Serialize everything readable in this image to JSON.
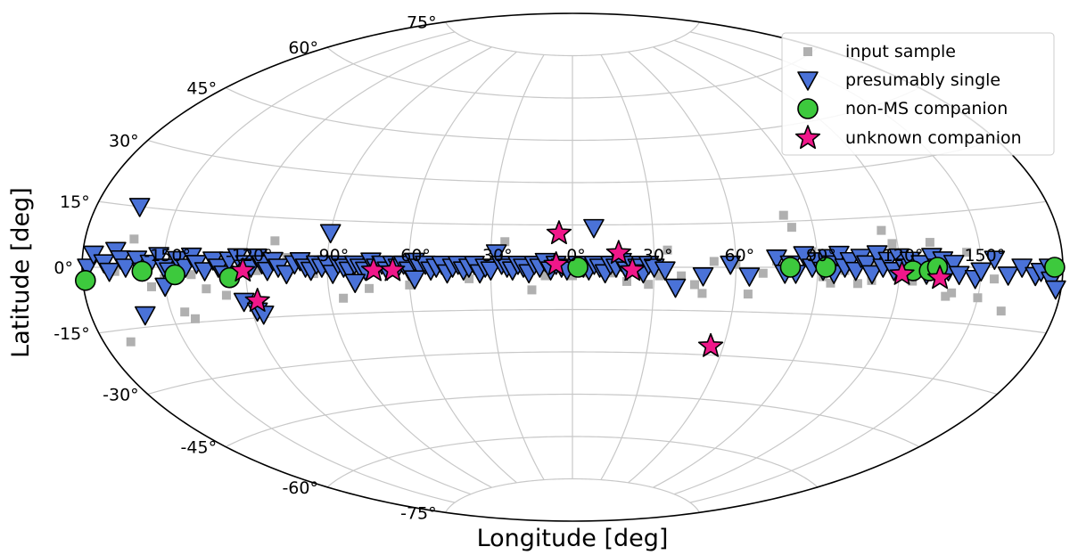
{
  "chart_data": {
    "type": "scatter",
    "projection": "aitoff",
    "title": "",
    "xlabel": "Longitude [deg]",
    "ylabel": "Latitude [deg]",
    "xlim": [
      -180,
      180
    ],
    "ylim": [
      -90,
      90
    ],
    "grid": true,
    "x_ticks": [
      -150,
      -120,
      -90,
      -60,
      -30,
      0,
      30,
      60,
      90,
      120,
      150
    ],
    "x_tick_labels": [
      "-150°",
      "-120°",
      "-90°",
      "-60°",
      "-30°",
      "0°",
      "30°",
      "60°",
      "90°",
      "120°",
      "150°"
    ],
    "y_ticks": [
      -75,
      -60,
      -45,
      -30,
      -15,
      0,
      15,
      30,
      45,
      60,
      75
    ],
    "y_tick_labels": [
      "-75°",
      "-60°",
      "-45°",
      "-30°",
      "-15°",
      "0°",
      "15°",
      "30°",
      "45°",
      "60°",
      "75°"
    ],
    "legend_position": "top-right",
    "legend": [
      "input sample",
      "presumably single",
      "non-MS companion",
      "unknown companion"
    ],
    "colors": {
      "input_sample": "#b0b0b0",
      "presumably_single": "#4a72d8",
      "non_ms_companion": "#3dc93d",
      "unknown_companion": "#f0178a",
      "outline": "#000000",
      "grid": "#c8c8c8"
    },
    "series": [
      {
        "name": "input sample",
        "marker": "square",
        "points": [
          [
            -175,
            2
          ],
          [
            -168,
            -1
          ],
          [
            -162,
            7
          ],
          [
            -155,
            -5
          ],
          [
            -150,
            -3
          ],
          [
            -145,
            -12
          ],
          [
            -142,
            -14
          ],
          [
            -140,
            -2
          ],
          [
            -135,
            -6
          ],
          [
            -130,
            2
          ],
          [
            -128,
            -8
          ],
          [
            -125,
            -4
          ],
          [
            -116,
            -1
          ],
          [
            -110,
            8
          ],
          [
            -105,
            3
          ],
          [
            -95,
            -2
          ],
          [
            -85,
            -10
          ],
          [
            -75,
            -7
          ],
          [
            -60,
            -6
          ],
          [
            -48,
            0
          ],
          [
            -40,
            -1
          ],
          [
            -38,
            -4
          ],
          [
            -25,
            9
          ],
          [
            -15,
            -8
          ],
          [
            -10,
            -3
          ],
          [
            0,
            -3
          ],
          [
            5,
            -2
          ],
          [
            15,
            -2
          ],
          [
            20,
            -5
          ],
          [
            28,
            -6
          ],
          [
            32,
            -3
          ],
          [
            35,
            6
          ],
          [
            40,
            -3
          ],
          [
            45,
            -6
          ],
          [
            48,
            -9
          ],
          [
            52,
            2
          ],
          [
            60,
            1
          ],
          [
            65,
            -9
          ],
          [
            70,
            -2
          ],
          [
            75,
            2
          ],
          [
            78,
            -1
          ],
          [
            80,
            17
          ],
          [
            82,
            13
          ],
          [
            88,
            5
          ],
          [
            92,
            -3
          ],
          [
            95,
            -5
          ],
          [
            100,
            -1
          ],
          [
            105,
            -5
          ],
          [
            108,
            1
          ],
          [
            110,
            -4
          ],
          [
            112,
            2
          ],
          [
            115,
            11
          ],
          [
            118,
            7
          ],
          [
            120,
            4
          ],
          [
            122,
            -2
          ],
          [
            125,
            -4
          ],
          [
            128,
            1
          ],
          [
            132,
            7
          ],
          [
            135,
            -3
          ],
          [
            138,
            -8
          ],
          [
            140,
            -7
          ],
          [
            145,
            4
          ],
          [
            150,
            -8
          ],
          [
            155,
            -3
          ],
          [
            160,
            -11
          ],
          [
            165,
            1
          ],
          [
            -170,
            -18
          ]
        ]
      },
      {
        "name": "presumably single",
        "marker": "triangle-down",
        "points": [
          [
            -178,
            0
          ],
          [
            -176,
            3
          ],
          [
            -172,
            1
          ],
          [
            -170,
            -1
          ],
          [
            -168,
            4
          ],
          [
            -166,
            2
          ],
          [
            -164,
            0
          ],
          [
            -160,
            2
          ],
          [
            -158,
            -1
          ],
          [
            -155,
            1
          ],
          [
            -152,
            3
          ],
          [
            -150,
            0
          ],
          [
            -148,
            -1
          ],
          [
            -145,
            2
          ],
          [
            -142,
            0
          ],
          [
            -140,
            3
          ],
          [
            -138,
            1
          ],
          [
            -135,
            -1
          ],
          [
            -132,
            2
          ],
          [
            -130,
            0
          ],
          [
            -128,
            -2
          ],
          [
            -126,
            2
          ],
          [
            -123,
            3
          ],
          [
            -120,
            1
          ],
          [
            -118,
            0
          ],
          [
            -116,
            3
          ],
          [
            -114,
            1
          ],
          [
            -112,
            -1
          ],
          [
            -110,
            2
          ],
          [
            -108,
            0
          ],
          [
            -105,
            -2
          ],
          [
            -102,
            1
          ],
          [
            -100,
            2
          ],
          [
            -98,
            0
          ],
          [
            -96,
            -1
          ],
          [
            -94,
            1
          ],
          [
            -92,
            0
          ],
          [
            -90,
            1
          ],
          [
            -88,
            -2
          ],
          [
            -86,
            1
          ],
          [
            -84,
            0
          ],
          [
            -82,
            -1
          ],
          [
            -80,
            1
          ],
          [
            -78,
            0
          ],
          [
            -76,
            -1
          ],
          [
            -74,
            2
          ],
          [
            -72,
            0
          ],
          [
            -70,
            1
          ],
          [
            -68,
            -1
          ],
          [
            -66,
            1
          ],
          [
            -64,
            0
          ],
          [
            -62,
            1
          ],
          [
            -60,
            -1
          ],
          [
            -58,
            2
          ],
          [
            -56,
            0
          ],
          [
            -54,
            1
          ],
          [
            -52,
            -1
          ],
          [
            -50,
            0
          ],
          [
            -48,
            1
          ],
          [
            -46,
            -2
          ],
          [
            -44,
            0
          ],
          [
            -42,
            1
          ],
          [
            -40,
            -1
          ],
          [
            -38,
            0
          ],
          [
            -36,
            1
          ],
          [
            -34,
            -2
          ],
          [
            -32,
            0
          ],
          [
            -30,
            -1
          ],
          [
            -28,
            5
          ],
          [
            -26,
            1
          ],
          [
            -24,
            0
          ],
          [
            -22,
            -1
          ],
          [
            -20,
            1
          ],
          [
            -18,
            0
          ],
          [
            -16,
            -2
          ],
          [
            -14,
            1
          ],
          [
            -12,
            0
          ],
          [
            -10,
            2
          ],
          [
            -8,
            -1
          ],
          [
            -6,
            1
          ],
          [
            -4,
            0
          ],
          [
            -2,
            -1
          ],
          [
            2,
            1
          ],
          [
            4,
            0
          ],
          [
            6,
            -1
          ],
          [
            8,
            1
          ],
          [
            10,
            0
          ],
          [
            12,
            -2
          ],
          [
            14,
            1
          ],
          [
            16,
            0
          ],
          [
            18,
            2
          ],
          [
            20,
            -1
          ],
          [
            22,
            1
          ],
          [
            24,
            0
          ],
          [
            26,
            -2
          ],
          [
            28,
            1
          ],
          [
            30,
            0
          ],
          [
            34,
            -1
          ],
          [
            -164,
            15
          ],
          [
            -160,
            -12
          ],
          [
            -150,
            -5
          ],
          [
            -122,
            -10
          ],
          [
            -118,
            -13
          ],
          [
            -116,
            -14
          ],
          [
            -90,
            11
          ],
          [
            -80,
            -5
          ],
          [
            -58,
            -4
          ],
          [
            8,
            14
          ],
          [
            38,
            -7
          ],
          [
            48,
            -3
          ],
          [
            58,
            1
          ],
          [
            65,
            -3
          ],
          [
            75,
            3
          ],
          [
            78,
            -2
          ],
          [
            80,
            1
          ],
          [
            82,
            -2
          ],
          [
            85,
            4
          ],
          [
            88,
            0
          ],
          [
            90,
            2
          ],
          [
            92,
            -1
          ],
          [
            94,
            3
          ],
          [
            95,
            1
          ],
          [
            96,
            -2
          ],
          [
            98,
            4
          ],
          [
            100,
            0
          ],
          [
            102,
            2
          ],
          [
            104,
            -1
          ],
          [
            106,
            3
          ],
          [
            108,
            1
          ],
          [
            110,
            -2
          ],
          [
            112,
            4
          ],
          [
            114,
            0
          ],
          [
            116,
            2
          ],
          [
            118,
            -1
          ],
          [
            120,
            3
          ],
          [
            122,
            0
          ],
          [
            124,
            2
          ],
          [
            126,
            -1
          ],
          [
            128,
            1
          ],
          [
            130,
            -2
          ],
          [
            132,
            3
          ],
          [
            134,
            0
          ],
          [
            136,
            2
          ],
          [
            138,
            -1
          ],
          [
            140,
            1
          ],
          [
            142,
            -2
          ],
          [
            148,
            -3
          ],
          [
            150,
            -1
          ],
          [
            155,
            2
          ],
          [
            160,
            -2
          ],
          [
            165,
            0
          ],
          [
            170,
            -2
          ],
          [
            172,
            -1
          ],
          [
            175,
            0
          ],
          [
            176,
            -3
          ],
          [
            178,
            -5
          ]
        ]
      },
      {
        "name": "non-MS companion",
        "marker": "circle",
        "points": [
          [
            -179,
            -3
          ],
          [
            -158,
            -1
          ],
          [
            -146,
            -2
          ],
          [
            -126,
            -3
          ],
          [
            2,
            0
          ],
          [
            80,
            0
          ],
          [
            93,
            0
          ],
          [
            125,
            -1
          ],
          [
            131,
            -1
          ],
          [
            134,
            0
          ],
          [
            177,
            0
          ]
        ]
      },
      {
        "name": "unknown companion",
        "marker": "star",
        "points": [
          [
            -5,
            12
          ],
          [
            -6,
            1
          ],
          [
            17,
            5
          ],
          [
            22,
            -1
          ],
          [
            -121,
            -1
          ],
          [
            -117,
            -10
          ],
          [
            -73,
            -1
          ],
          [
            -66,
            -1
          ],
          [
            55,
            -27
          ],
          [
            121,
            -2
          ],
          [
            135,
            -3
          ]
        ]
      }
    ]
  }
}
